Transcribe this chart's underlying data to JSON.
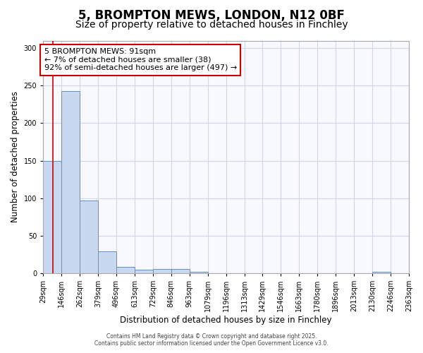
{
  "title_line1": "5, BROMPTON MEWS, LONDON, N12 0BF",
  "title_line2": "Size of property relative to detached houses in Finchley",
  "bar_values": [
    150,
    243,
    97,
    29,
    8,
    5,
    6,
    6,
    2,
    0,
    0,
    0,
    0,
    0,
    0,
    0,
    0,
    0,
    2,
    0
  ],
  "bin_edges": [
    29,
    146,
    262,
    379,
    496,
    613,
    729,
    846,
    963,
    1079,
    1196,
    1313,
    1429,
    1546,
    1663,
    1780,
    1896,
    2013,
    2130,
    2246,
    2363
  ],
  "x_tick_labels": [
    "29sqm",
    "146sqm",
    "262sqm",
    "379sqm",
    "496sqm",
    "613sqm",
    "729sqm",
    "846sqm",
    "963sqm",
    "1079sqm",
    "1196sqm",
    "1313sqm",
    "1429sqm",
    "1546sqm",
    "1663sqm",
    "1780sqm",
    "1896sqm",
    "2013sqm",
    "2130sqm",
    "2246sqm",
    "2363sqm"
  ],
  "bar_color": "#c8d8f0",
  "bar_edge_color": "#6090c8",
  "bg_color": "#f8f8ff",
  "grid_color": "#d0d8e8",
  "ylabel": "Number of detached properties",
  "xlabel": "Distribution of detached houses by size in Finchley",
  "ylim": [
    0,
    310
  ],
  "yticks": [
    0,
    50,
    100,
    150,
    200,
    250,
    300
  ],
  "property_size": 91,
  "red_line_color": "#cc0000",
  "annotation_line1": "5 BROMPTON MEWS: 91sqm",
  "annotation_line2": "← 7% of detached houses are smaller (38)",
  "annotation_line3": "92% of semi-detached houses are larger (497) →",
  "footer_line1": "Contains HM Land Registry data © Crown copyright and database right 2025.",
  "footer_line2": "Contains public sector information licensed under the Open Government Licence v3.0.",
  "title_fontsize": 12,
  "subtitle_fontsize": 10,
  "tick_fontsize": 7,
  "ylabel_fontsize": 8.5,
  "xlabel_fontsize": 8.5,
  "annotation_fontsize": 8
}
